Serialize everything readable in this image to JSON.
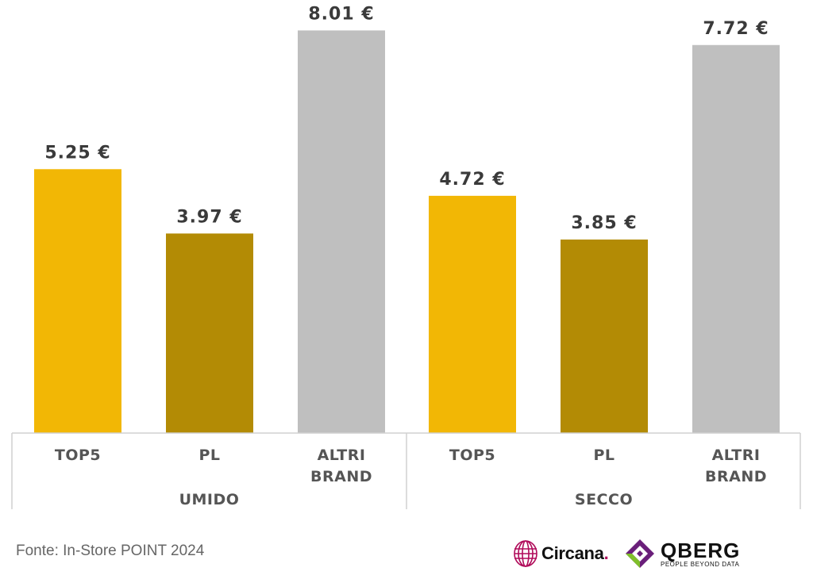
{
  "chart_data": {
    "type": "bar",
    "title": "",
    "xlabel": "",
    "ylabel": "",
    "grid": false,
    "ylim": [
      0,
      8.3
    ],
    "value_suffix": " €",
    "groups": [
      {
        "name": "UMIDO",
        "bars": [
          {
            "category": [
              "TOP5"
            ],
            "value": 5.25,
            "label": "5.25 €",
            "color": "#f2b705"
          },
          {
            "category": [
              "PL"
            ],
            "value": 3.97,
            "label": "3.97 €",
            "color": "#b38b05"
          },
          {
            "category": [
              "ALTRI",
              "BRAND"
            ],
            "value": 8.01,
            "label": "8.01 €",
            "color": "#bfbfbf"
          }
        ]
      },
      {
        "name": "SECCO",
        "bars": [
          {
            "category": [
              "TOP5"
            ],
            "value": 4.72,
            "label": "4.72 €",
            "color": "#f2b705"
          },
          {
            "category": [
              "PL"
            ],
            "value": 3.85,
            "label": "3.85 €",
            "color": "#b38b05"
          },
          {
            "category": [
              "ALTRI",
              "BRAND"
            ],
            "value": 7.72,
            "label": "7.72 €",
            "color": "#bfbfbf"
          }
        ]
      }
    ]
  },
  "footer": {
    "source": "Fonte: In-Store POINT 2024",
    "circana": {
      "name": "Circana",
      "dot": ".",
      "icon": "circana-globe-icon",
      "color": "#b00b5a"
    },
    "qberg": {
      "name": "QBERG",
      "tagline": "PEOPLE BEYOND DATA",
      "icon": "qberg-diamond-icon"
    }
  }
}
